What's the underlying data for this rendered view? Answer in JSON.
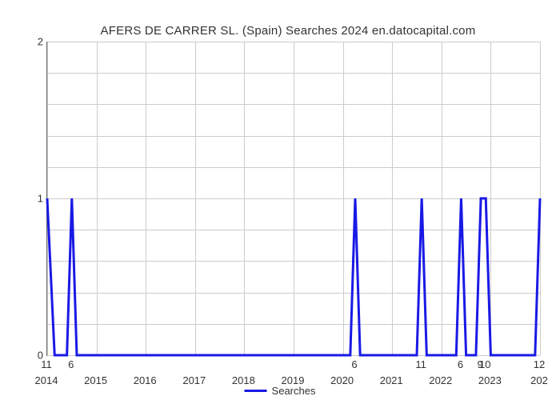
{
  "chart": {
    "type": "line",
    "title": "AFERS DE CARRER SL. (Spain) Searches 2024 en.datocapital.com",
    "title_fontsize": 15,
    "title_color": "#333333",
    "background_color": "#ffffff",
    "grid_color": "#cccccc",
    "axis_color": "#666666",
    "line_color": "#1919e6",
    "line_width": 3,
    "x_axis": {
      "ticks": [
        "2014",
        "2015",
        "2016",
        "2017",
        "2018",
        "2019",
        "2020",
        "2021",
        "2022",
        "2023",
        "202"
      ],
      "positions_pct": [
        0,
        10,
        20,
        30,
        40,
        50,
        60,
        70,
        80,
        90,
        100
      ]
    },
    "y_axis": {
      "ticks": [
        "0",
        "1",
        "2"
      ],
      "positions_pct": [
        100,
        50,
        0
      ],
      "ylim": [
        0,
        2
      ]
    },
    "grid_h_positions_pct": [
      0,
      10,
      20,
      30,
      40,
      50,
      60,
      70,
      80,
      90,
      100
    ],
    "grid_v_positions_pct": [
      0,
      10,
      20,
      30,
      40,
      50,
      60,
      70,
      80,
      90,
      100
    ],
    "series": {
      "name": "Searches",
      "points": [
        {
          "x_pct": 0.0,
          "y": 1,
          "label": "11"
        },
        {
          "x_pct": 1.5,
          "y": 0,
          "label": ""
        },
        {
          "x_pct": 4.0,
          "y": 0,
          "label": ""
        },
        {
          "x_pct": 5.0,
          "y": 1,
          "label": "6"
        },
        {
          "x_pct": 6.0,
          "y": 0,
          "label": ""
        },
        {
          "x_pct": 61.5,
          "y": 0,
          "label": ""
        },
        {
          "x_pct": 62.5,
          "y": 1,
          "label": "6"
        },
        {
          "x_pct": 63.5,
          "y": 0,
          "label": ""
        },
        {
          "x_pct": 75.0,
          "y": 0,
          "label": ""
        },
        {
          "x_pct": 76.0,
          "y": 1,
          "label": "11"
        },
        {
          "x_pct": 77.0,
          "y": 0,
          "label": ""
        },
        {
          "x_pct": 83.0,
          "y": 0,
          "label": ""
        },
        {
          "x_pct": 84.0,
          "y": 1,
          "label": "6"
        },
        {
          "x_pct": 85.0,
          "y": 0,
          "label": ""
        },
        {
          "x_pct": 87.0,
          "y": 0,
          "label": ""
        },
        {
          "x_pct": 88.0,
          "y": 1,
          "label": "9"
        },
        {
          "x_pct": 89.0,
          "y": 1,
          "label": "10"
        },
        {
          "x_pct": 90.0,
          "y": 0,
          "label": ""
        },
        {
          "x_pct": 99.0,
          "y": 0,
          "label": ""
        },
        {
          "x_pct": 100.0,
          "y": 1,
          "label": "12"
        }
      ]
    },
    "legend": {
      "label": "Searches",
      "color": "#1919e6"
    },
    "label_fontsize": 13,
    "label_color": "#333333"
  }
}
